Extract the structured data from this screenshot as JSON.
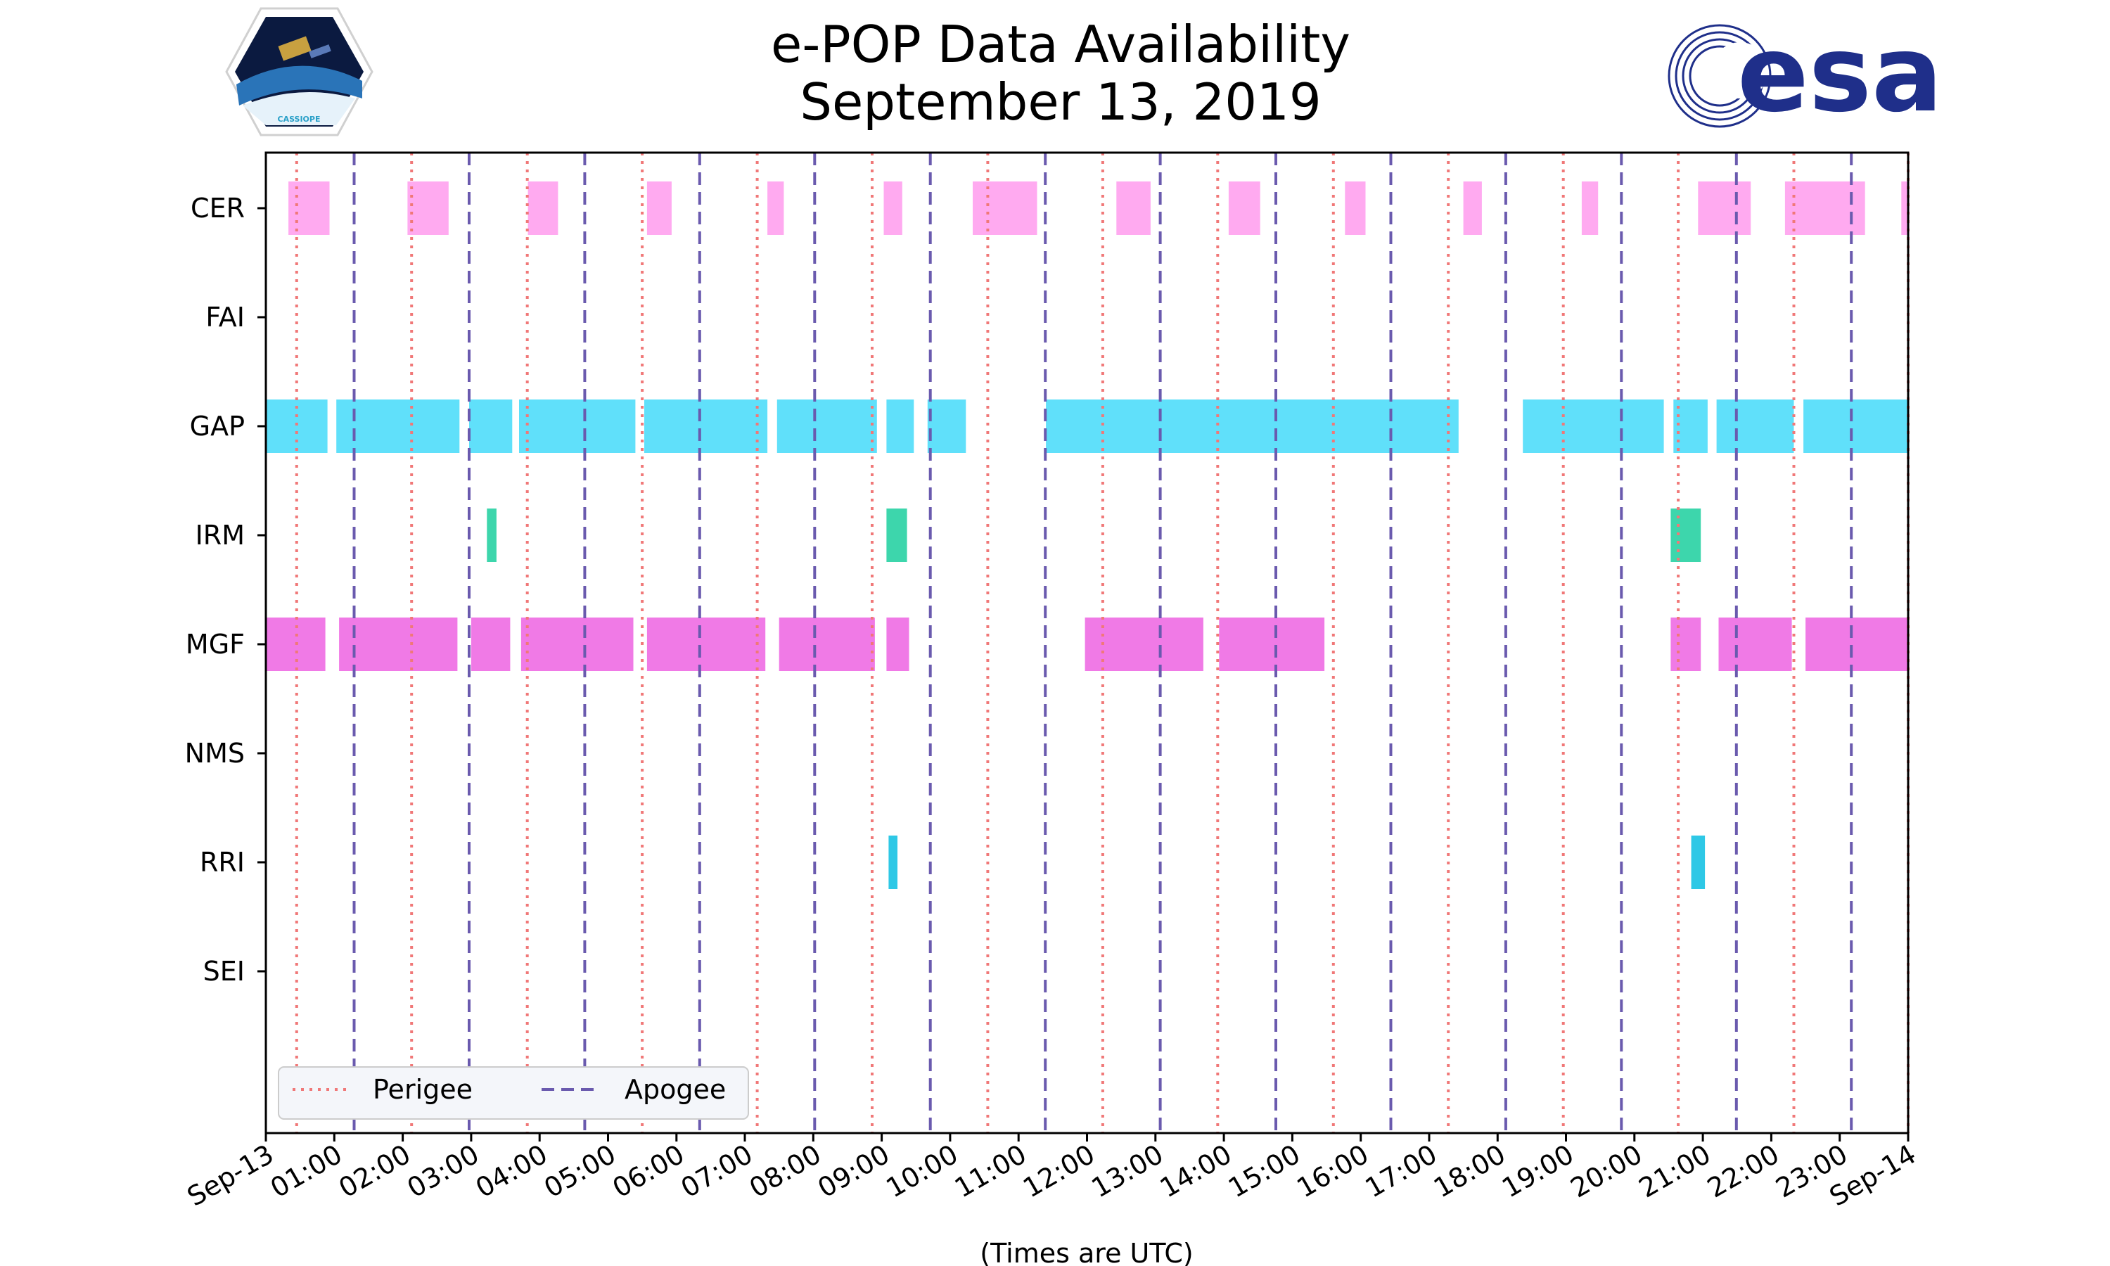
{
  "chart_data": {
    "type": "timeline",
    "title_lines": [
      "e-POP Data Availability",
      "September 13, 2019"
    ],
    "xlabel": "(Times are UTC)",
    "x_unit": "hours UTC",
    "xlim": [
      0,
      24
    ],
    "x_ticks": [
      {
        "t": 0,
        "label": "Sep-13"
      },
      {
        "t": 1,
        "label": "01:00"
      },
      {
        "t": 2,
        "label": "02:00"
      },
      {
        "t": 3,
        "label": "03:00"
      },
      {
        "t": 4,
        "label": "04:00"
      },
      {
        "t": 5,
        "label": "05:00"
      },
      {
        "t": 6,
        "label": "06:00"
      },
      {
        "t": 7,
        "label": "07:00"
      },
      {
        "t": 8,
        "label": "08:00"
      },
      {
        "t": 9,
        "label": "09:00"
      },
      {
        "t": 10,
        "label": "10:00"
      },
      {
        "t": 11,
        "label": "11:00"
      },
      {
        "t": 12,
        "label": "12:00"
      },
      {
        "t": 13,
        "label": "13:00"
      },
      {
        "t": 14,
        "label": "14:00"
      },
      {
        "t": 15,
        "label": "15:00"
      },
      {
        "t": 16,
        "label": "16:00"
      },
      {
        "t": 17,
        "label": "17:00"
      },
      {
        "t": 18,
        "label": "18:00"
      },
      {
        "t": 19,
        "label": "19:00"
      },
      {
        "t": 20,
        "label": "20:00"
      },
      {
        "t": 21,
        "label": "21:00"
      },
      {
        "t": 22,
        "label": "22:00"
      },
      {
        "t": 23,
        "label": "23:00"
      },
      {
        "t": 24,
        "label": "Sep-14"
      }
    ],
    "instruments": [
      "CER",
      "FAI",
      "GAP",
      "IRM",
      "MGF",
      "NMS",
      "RRI",
      "SEI"
    ],
    "series": [
      {
        "name": "CER",
        "color": "#ffaaf0",
        "intervals": [
          [
            0.33,
            0.93
          ],
          [
            2.07,
            2.67
          ],
          [
            3.83,
            4.27
          ],
          [
            5.57,
            5.93
          ],
          [
            7.33,
            7.57
          ],
          [
            9.03,
            9.3
          ],
          [
            10.33,
            11.27
          ],
          [
            12.43,
            12.93
          ],
          [
            14.07,
            14.53
          ],
          [
            15.77,
            16.07
          ],
          [
            17.5,
            17.77
          ],
          [
            19.23,
            19.47
          ],
          [
            20.93,
            21.7
          ],
          [
            22.2,
            23.37
          ],
          [
            23.9,
            24.0
          ]
        ]
      },
      {
        "name": "FAI",
        "color": "#ff8c5a",
        "intervals": []
      },
      {
        "name": "GAP",
        "color": "#60e0fa",
        "intervals": [
          [
            0.0,
            0.9
          ],
          [
            1.03,
            2.83
          ],
          [
            2.97,
            3.6
          ],
          [
            3.7,
            5.4
          ],
          [
            5.53,
            7.33
          ],
          [
            7.47,
            8.93
          ],
          [
            9.07,
            9.47
          ],
          [
            9.67,
            10.23
          ],
          [
            11.4,
            17.43
          ],
          [
            18.37,
            20.43
          ],
          [
            20.57,
            21.07
          ],
          [
            21.2,
            22.33
          ],
          [
            22.47,
            24.0
          ]
        ]
      },
      {
        "name": "IRM",
        "color": "#3dd6ac",
        "intervals": [
          [
            3.23,
            3.37
          ],
          [
            9.07,
            9.37
          ],
          [
            20.53,
            20.97
          ]
        ]
      },
      {
        "name": "MGF",
        "color": "#f07ae6",
        "intervals": [
          [
            0.0,
            0.87
          ],
          [
            1.07,
            2.8
          ],
          [
            3.0,
            3.57
          ],
          [
            3.73,
            5.37
          ],
          [
            5.57,
            7.3
          ],
          [
            7.5,
            8.9
          ],
          [
            9.07,
            9.4
          ],
          [
            11.97,
            13.7
          ],
          [
            13.93,
            15.47
          ],
          [
            20.53,
            20.97
          ],
          [
            21.23,
            22.3
          ],
          [
            22.5,
            24.0
          ]
        ]
      },
      {
        "name": "NMS",
        "color": "#888888",
        "intervals": []
      },
      {
        "name": "RRI",
        "color": "#2ec8e6",
        "intervals": [
          [
            9.1,
            9.23
          ],
          [
            20.83,
            21.03
          ]
        ]
      },
      {
        "name": "SEI",
        "color": "#888888",
        "intervals": []
      }
    ],
    "perigee_times": [
      0.45,
      2.13,
      3.82,
      5.5,
      7.18,
      8.86,
      10.55,
      12.23,
      13.91,
      15.6,
      17.28,
      18.96,
      20.64,
      22.33,
      24.0
    ],
    "apogee_times": [
      1.29,
      2.97,
      4.66,
      6.34,
      8.02,
      9.71,
      11.39,
      13.07,
      14.76,
      16.44,
      18.12,
      19.81,
      21.49,
      23.17
    ],
    "perigee_color": "#f07878",
    "apogee_color": "#6a5aae",
    "legend": {
      "position": "lower-left",
      "items": [
        "Perigee",
        "Apogee"
      ]
    }
  },
  "logos": {
    "left_caption": "CASSIOPE",
    "right_text": "esa",
    "right_color": "#1f2f8a"
  }
}
